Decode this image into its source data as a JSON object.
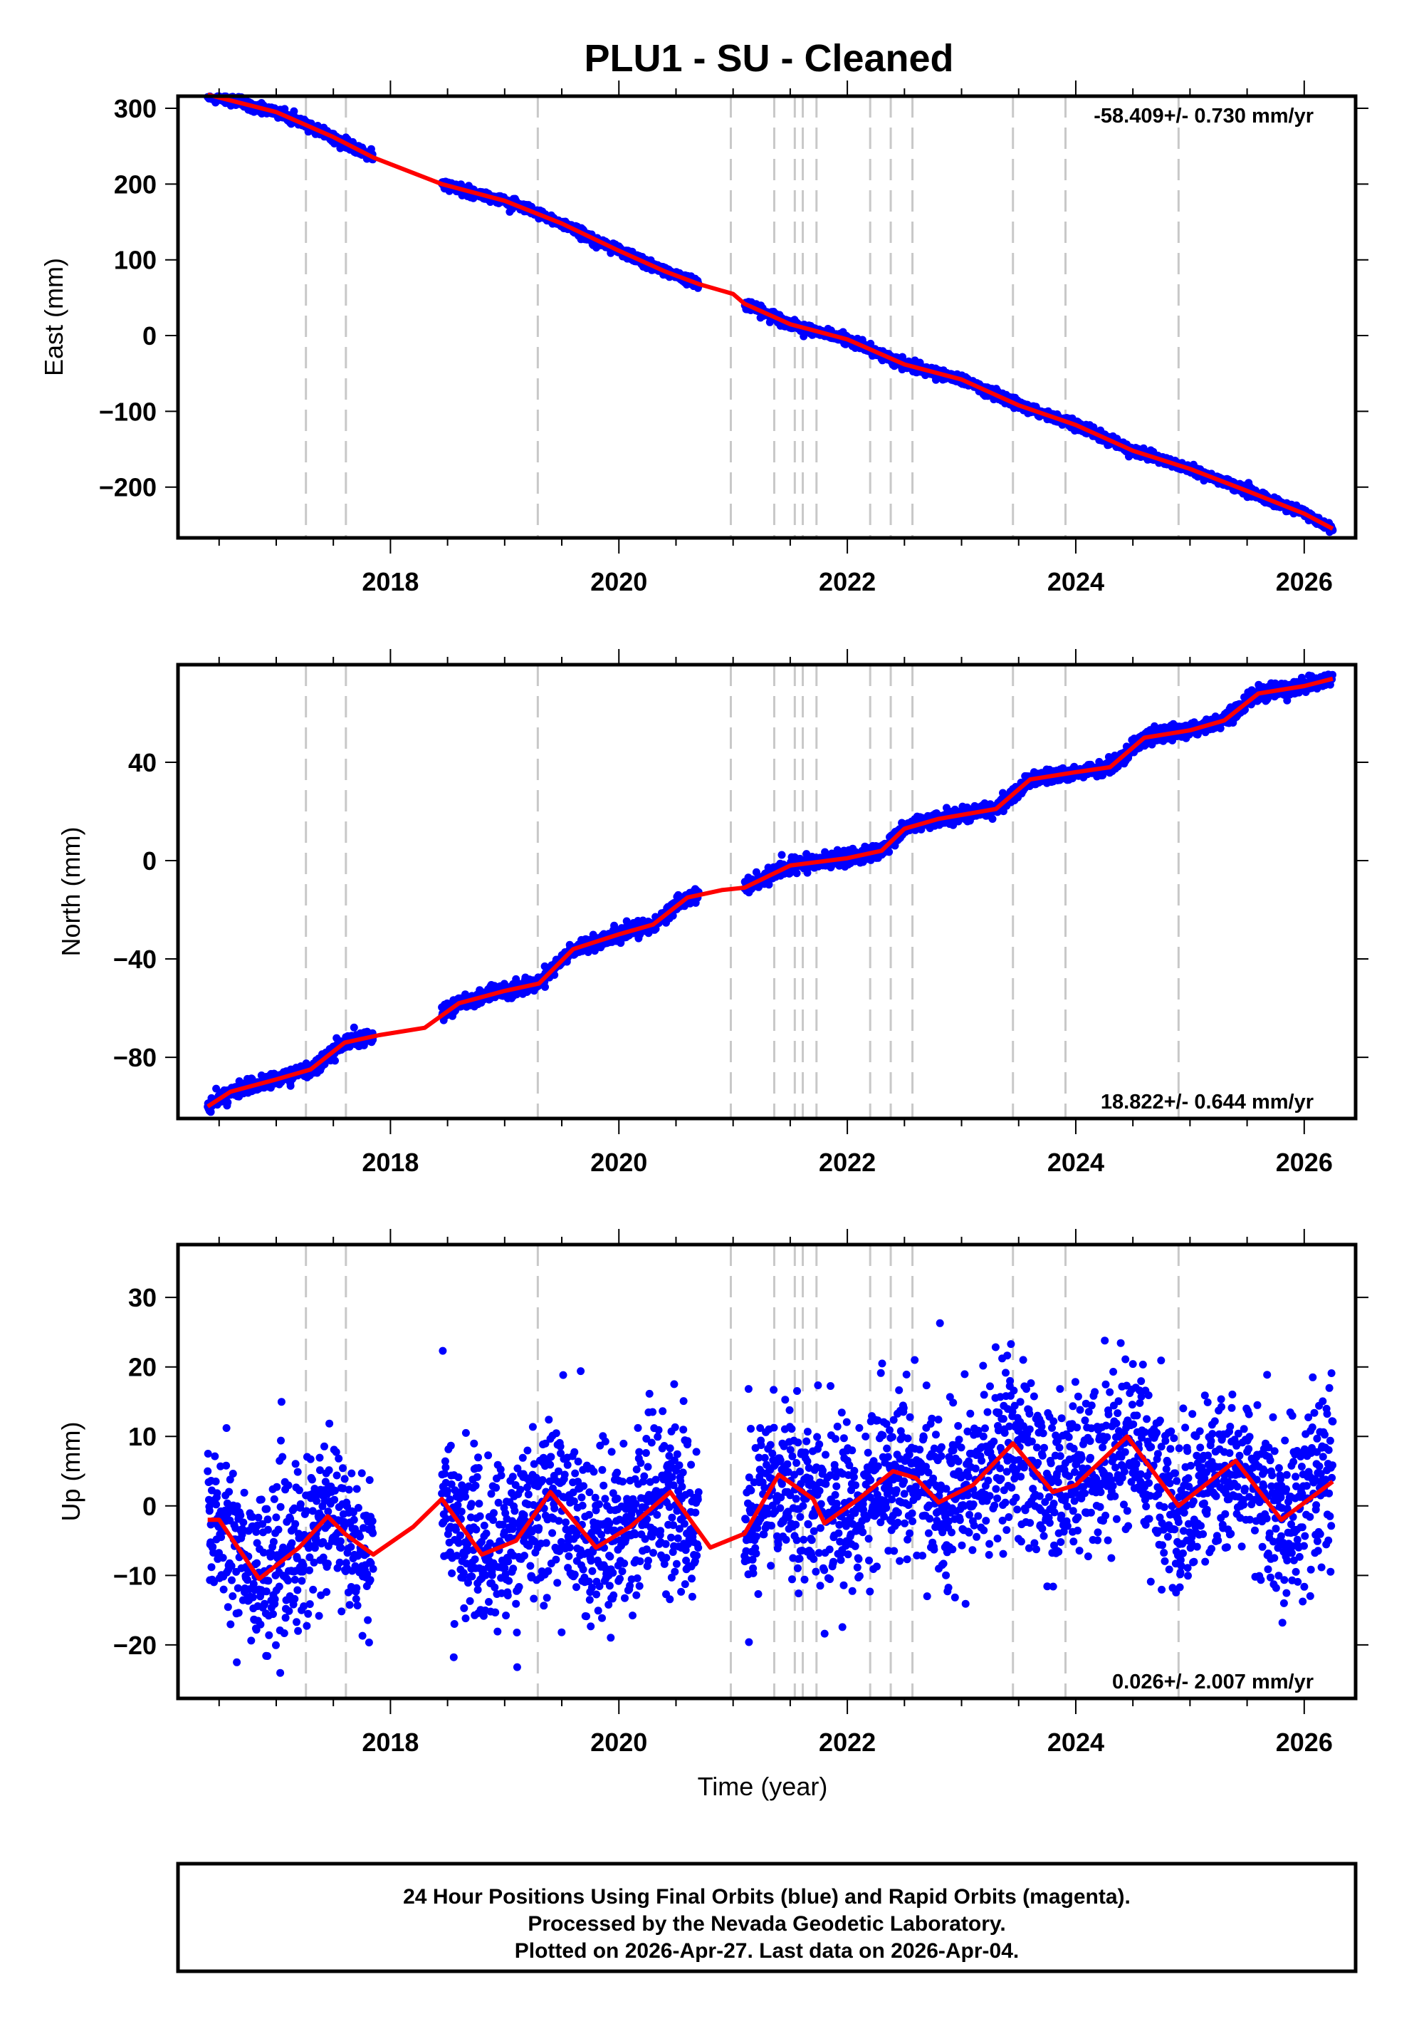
{
  "title": "PLU1  - SU - Cleaned",
  "footer": {
    "lines": [
      "24 Hour Positions Using Final Orbits (blue) and Rapid Orbits (magenta).",
      "Processed by the Nevada Geodetic Laboratory.",
      "Plotted on 2026-Apr-27. Last data on 2026-Apr-04."
    ]
  },
  "colors": {
    "points": "#0000ff",
    "fit": "#ff0000",
    "events": "#c8c8c8",
    "frame": "#000000"
  },
  "chart_data": [
    {
      "type": "scatter",
      "name": "east",
      "ylabel": "East (mm)",
      "xlabel": "",
      "xlim": [
        2016.14,
        2026.45
      ],
      "ylim": [
        -267,
        316
      ],
      "xticks": [
        2018,
        2020,
        2022,
        2024,
        2026
      ],
      "yticks": [
        300,
        200,
        100,
        0,
        -100,
        -200
      ],
      "ytick_labels": [
        "300",
        "200",
        "100",
        "0",
        "−100",
        "−200"
      ],
      "rate_text": "-58.409+/- 0.730 mm/yr",
      "rate_position": "top-right",
      "noise_mm": 3,
      "fit_curve": [
        [
          2016.4,
          318
        ],
        [
          2017,
          295
        ],
        [
          2017.5,
          262
        ],
        [
          2017.85,
          235
        ],
        [
          2018.45,
          200
        ],
        [
          2019,
          178
        ],
        [
          2019.5,
          148
        ],
        [
          2020,
          112
        ],
        [
          2020.4,
          85
        ],
        [
          2020.7,
          68
        ],
        [
          2021,
          55
        ],
        [
          2021.1,
          42
        ],
        [
          2021.5,
          15
        ],
        [
          2022,
          -5
        ],
        [
          2022.5,
          -38
        ],
        [
          2023,
          -58
        ],
        [
          2023.5,
          -92
        ],
        [
          2024,
          -118
        ],
        [
          2024.5,
          -152
        ],
        [
          2025,
          -176
        ],
        [
          2025.5,
          -205
        ],
        [
          2026,
          -235
        ],
        [
          2026.25,
          -255
        ]
      ]
    },
    {
      "type": "scatter",
      "name": "north",
      "ylabel": "North (mm)",
      "xlabel": "",
      "xlim": [
        2016.14,
        2026.45
      ],
      "ylim": [
        -104.9,
        79.7
      ],
      "xticks": [
        2018,
        2020,
        2022,
        2024,
        2026
      ],
      "yticks": [
        40,
        0,
        -40,
        -80
      ],
      "ytick_labels": [
        "40",
        "0",
        "−40",
        "−80"
      ],
      "rate_text": "18.822+/- 0.644 mm/yr",
      "rate_position": "bottom-right",
      "noise_mm": 1.4,
      "fit_curve": [
        [
          2016.4,
          -100
        ],
        [
          2016.6,
          -94
        ],
        [
          2017,
          -89
        ],
        [
          2017.3,
          -85
        ],
        [
          2017.6,
          -74
        ],
        [
          2017.9,
          -71
        ],
        [
          2018.3,
          -68
        ],
        [
          2018.6,
          -58
        ],
        [
          2019,
          -53
        ],
        [
          2019.3,
          -50
        ],
        [
          2019.6,
          -36
        ],
        [
          2020,
          -30
        ],
        [
          2020.3,
          -26
        ],
        [
          2020.6,
          -15
        ],
        [
          2020.9,
          -12
        ],
        [
          2021.1,
          -11
        ],
        [
          2021.5,
          -2
        ],
        [
          2022,
          1
        ],
        [
          2022.3,
          4
        ],
        [
          2022.5,
          13
        ],
        [
          2022.8,
          17
        ],
        [
          2023.3,
          21
        ],
        [
          2023.6,
          33
        ],
        [
          2024,
          36
        ],
        [
          2024.3,
          38
        ],
        [
          2024.6,
          50
        ],
        [
          2025,
          53
        ],
        [
          2025.3,
          57
        ],
        [
          2025.6,
          68
        ],
        [
          2026,
          71
        ],
        [
          2026.25,
          74
        ]
      ]
    },
    {
      "type": "scatter",
      "name": "up",
      "ylabel": "Up (mm)",
      "xlabel": "Time (year)",
      "xlim": [
        2016.14,
        2026.45
      ],
      "ylim": [
        -27.7,
        37.6
      ],
      "xticks": [
        2018,
        2020,
        2022,
        2024,
        2026
      ],
      "yticks": [
        30,
        20,
        10,
        0,
        -10,
        -20
      ],
      "ytick_labels": [
        "30",
        "20",
        "10",
        "0",
        "−10",
        "−20"
      ],
      "rate_text": "0.026+/- 2.007 mm/yr",
      "rate_position": "bottom-right",
      "noise_mm": 6,
      "fit_curve": [
        [
          2016.4,
          -2
        ],
        [
          2016.5,
          -2
        ],
        [
          2016.85,
          -10.5
        ],
        [
          2017.2,
          -6
        ],
        [
          2017.45,
          -1.5
        ],
        [
          2017.6,
          -4
        ],
        [
          2017.85,
          -7
        ],
        [
          2018.2,
          -3
        ],
        [
          2018.45,
          1
        ],
        [
          2018.8,
          -7
        ],
        [
          2019.1,
          -5
        ],
        [
          2019.4,
          2
        ],
        [
          2019.8,
          -6
        ],
        [
          2020.1,
          -3
        ],
        [
          2020.45,
          2
        ],
        [
          2020.8,
          -6
        ],
        [
          2021.1,
          -4
        ],
        [
          2021.4,
          4.5
        ],
        [
          2021.7,
          1
        ],
        [
          2021.8,
          -2.5
        ],
        [
          2022.1,
          1
        ],
        [
          2022.4,
          5
        ],
        [
          2022.6,
          4
        ],
        [
          2022.8,
          0.5
        ],
        [
          2023.1,
          3
        ],
        [
          2023.45,
          9
        ],
        [
          2023.8,
          2
        ],
        [
          2024.0,
          3
        ],
        [
          2024.45,
          10
        ],
        [
          2024.9,
          0
        ],
        [
          2025.4,
          6.5
        ],
        [
          2025.8,
          -2
        ],
        [
          2026.25,
          3.5
        ]
      ]
    }
  ],
  "data_segments": [
    [
      2016.4,
      2017.85
    ],
    [
      2018.45,
      2020.7
    ],
    [
      2021.1,
      2026.25
    ]
  ],
  "event_years": [
    2017.26,
    2017.61,
    2019.29,
    2020.98,
    2021.36,
    2021.54,
    2021.61,
    2021.73,
    2022.2,
    2022.38,
    2022.57,
    2023.45,
    2023.91,
    2024.9
  ]
}
